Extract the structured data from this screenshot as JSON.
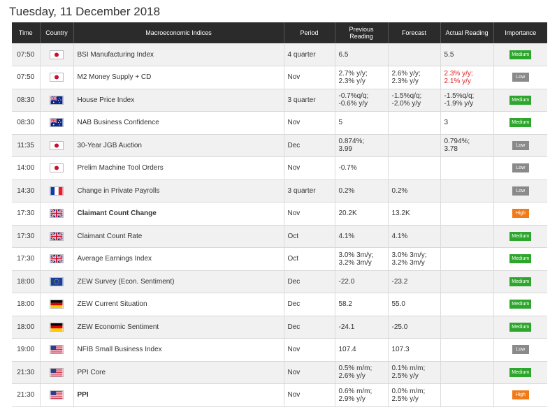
{
  "title": "Tuesday, 11 December 2018",
  "columns": [
    "Time",
    "Country",
    "Macroeconomic Indices",
    "Period",
    "Previous Reading",
    "Forecast",
    "Actual Reading",
    "Importance"
  ],
  "importance_colors": {
    "Medium": "#2ea62e",
    "Low": "#8a8a8a",
    "High": "#f07a18"
  },
  "rows": [
    {
      "time": "07:50",
      "flag": "jp-flag-icon",
      "index": "BSI Manufacturing Index",
      "period": "4 quarter",
      "previous": "6.5",
      "forecast": "",
      "actual": "5.5",
      "importance": "Medium",
      "bold": false,
      "actual_red": false
    },
    {
      "time": "07:50",
      "flag": "jp-flag-icon",
      "index": "M2 Money Supply + CD",
      "period": "Nov",
      "previous": "2.7% y/y;\n2.3% y/y",
      "forecast": "2.6% y/y;\n2.3% y/y",
      "actual": "2.3% y/y;\n2.1% y/y",
      "importance": "Low",
      "bold": false,
      "actual_red": true
    },
    {
      "time": "08:30",
      "flag": "au-flag-icon",
      "index": "House Price Index",
      "period": "3 quarter",
      "previous": "-0.7%q/q;\n-0.6% y/y",
      "forecast": "-1.5%q/q;\n-2.0% y/y",
      "actual": "-1.5%q/q;\n-1.9% y/y",
      "importance": "Medium",
      "bold": false,
      "actual_red": false
    },
    {
      "time": "08:30",
      "flag": "au-flag-icon",
      "index": "NAB Business Confidence",
      "period": "Nov",
      "previous": "5",
      "forecast": "",
      "actual": "3",
      "importance": "Medium",
      "bold": false,
      "actual_red": false
    },
    {
      "time": "11:35",
      "flag": "jp-flag-icon",
      "index": "30-Year JGB Auction",
      "period": "Dec",
      "previous": "0.874%;\n3.99",
      "forecast": "",
      "actual": "0.794%;\n3.78",
      "importance": "Low",
      "bold": false,
      "actual_red": false
    },
    {
      "time": "14:00",
      "flag": "jp-flag-icon",
      "index": "Prelim Machine Tool Orders",
      "period": "Nov",
      "previous": "-0.7%",
      "forecast": "",
      "actual": "",
      "importance": "Low",
      "bold": false,
      "actual_red": false
    },
    {
      "time": "14:30",
      "flag": "fr-flag-icon",
      "index": "Change in Private Payrolls",
      "period": "3 quarter",
      "previous": "0.2%",
      "forecast": "0.2%",
      "actual": "",
      "importance": "Low",
      "bold": false,
      "actual_red": false
    },
    {
      "time": "17:30",
      "flag": "uk-flag-icon",
      "index": "Claimant Count Change",
      "period": "Nov",
      "previous": "20.2K",
      "forecast": "13.2K",
      "actual": "",
      "importance": "High",
      "bold": true,
      "actual_red": false
    },
    {
      "time": "17:30",
      "flag": "uk-flag-icon",
      "index": "Claimant Count Rate",
      "period": "Oct",
      "previous": "4.1%",
      "forecast": "4.1%",
      "actual": "",
      "importance": "Medium",
      "bold": false,
      "actual_red": false
    },
    {
      "time": "17:30",
      "flag": "uk-flag-icon",
      "index": "Average Earnings Index",
      "period": "Oct",
      "previous": "3.0% 3m/y;\n3.2% 3m/y",
      "forecast": "3.0% 3m/y;\n3.2% 3m/y",
      "actual": "",
      "importance": "Medium",
      "bold": false,
      "actual_red": false
    },
    {
      "time": "18:00",
      "flag": "eu-flag-icon",
      "index": "ZEW Survey (Econ. Sentiment)",
      "period": "Dec",
      "previous": "-22.0",
      "forecast": "-23.2",
      "actual": "",
      "importance": "Medium",
      "bold": false,
      "actual_red": false
    },
    {
      "time": "18:00",
      "flag": "de-flag-icon",
      "index": "ZEW Current Situation",
      "period": "Dec",
      "previous": "58.2",
      "forecast": "55.0",
      "actual": "",
      "importance": "Medium",
      "bold": false,
      "actual_red": false
    },
    {
      "time": "18:00",
      "flag": "de-flag-icon",
      "index": "ZEW Economic Sentiment",
      "period": "Dec",
      "previous": "-24.1",
      "forecast": "-25.0",
      "actual": "",
      "importance": "Medium",
      "bold": false,
      "actual_red": false
    },
    {
      "time": "19:00",
      "flag": "us-flag-icon",
      "index": "NFIB Small Business Index",
      "period": "Nov",
      "previous": "107.4",
      "forecast": "107.3",
      "actual": "",
      "importance": "Low",
      "bold": false,
      "actual_red": false
    },
    {
      "time": "21:30",
      "flag": "us-flag-icon",
      "index": "PPI Core",
      "period": "Nov",
      "previous": "0.5% m/m;\n2.6% y/y",
      "forecast": "0.1% m/m;\n2.5% y/y",
      "actual": "",
      "importance": "Medium",
      "bold": false,
      "actual_red": false
    },
    {
      "time": "21:30",
      "flag": "us-flag-icon",
      "index": "PPI",
      "period": "Nov",
      "previous": "0.6% m/m;\n2.9% y/y",
      "forecast": "0.0% m/m;\n2.5% y/y",
      "actual": "",
      "importance": "High",
      "bold": true,
      "actual_red": false
    }
  ]
}
